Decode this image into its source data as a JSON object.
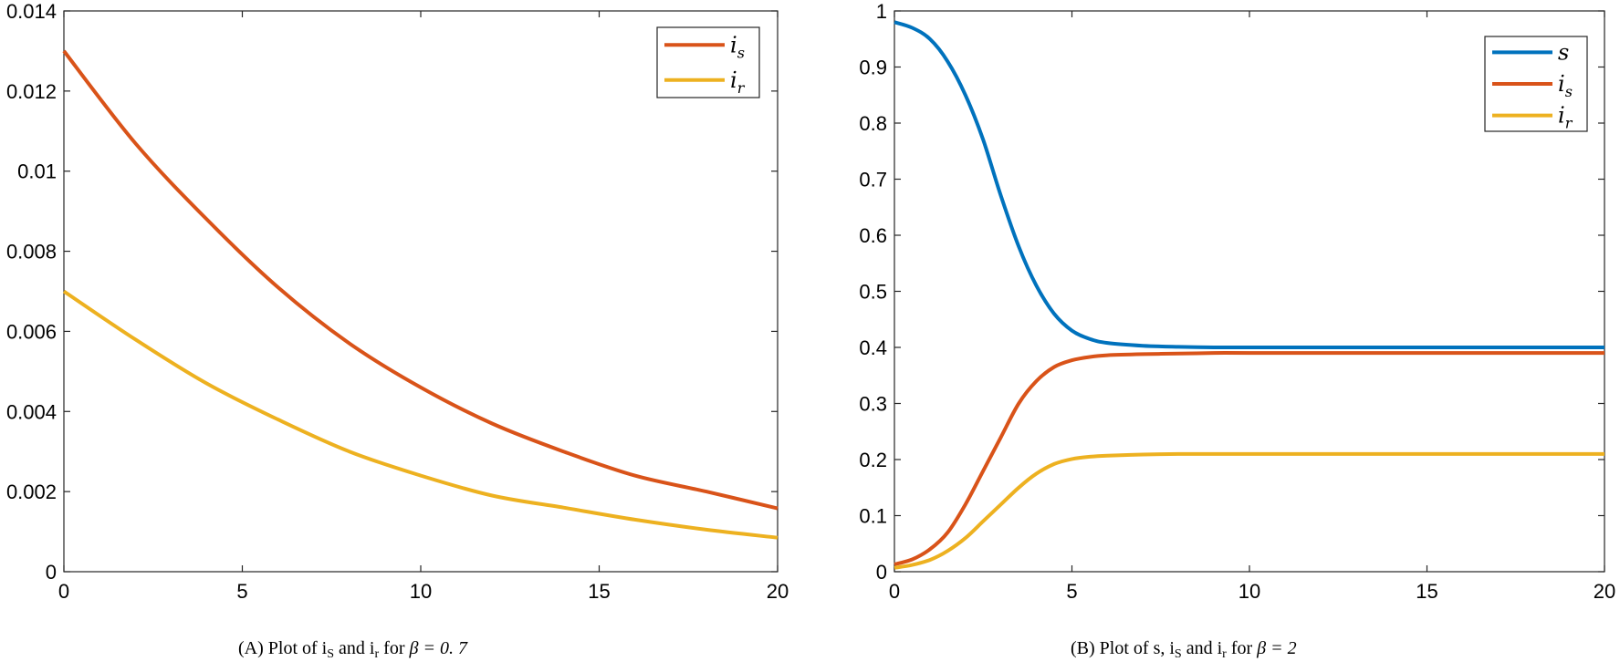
{
  "chart_data": [
    {
      "type": "line",
      "caption": {
        "prefix": "(A) Plot of",
        "v1": "i",
        "v1_sub": "S",
        "and": "and",
        "v2": "i",
        "v2_sub": "r",
        "for": "for",
        "beta_expr": "β = 0. 7"
      },
      "xlim": [
        0,
        20
      ],
      "ylim": [
        0,
        0.014
      ],
      "x_ticks": [
        "0",
        "5",
        "10",
        "15",
        "20"
      ],
      "y_ticks": [
        "0",
        "0.002",
        "0.004",
        "0.006",
        "0.008",
        "0.01",
        "0.012",
        "0.014"
      ],
      "legend_position": "top-right",
      "grid": false,
      "series": [
        {
          "name": "i",
          "sub": "s",
          "color": "#D95319",
          "x": [
            0,
            2,
            4,
            6,
            8,
            10,
            12,
            14,
            16,
            18,
            20
          ],
          "values": [
            0.013,
            0.0107,
            0.0088,
            0.0071,
            0.0057,
            0.0046,
            0.0037,
            0.003,
            0.0024,
            0.002,
            0.00158
          ]
        },
        {
          "name": "i",
          "sub": "r",
          "color": "#EDB120",
          "x": [
            0,
            2,
            4,
            6,
            8,
            10,
            12,
            14,
            16,
            18,
            20
          ],
          "values": [
            0.007,
            0.0058,
            0.0047,
            0.0038,
            0.003,
            0.0024,
            0.0019,
            0.0016,
            0.0013,
            0.00105,
            0.00085
          ]
        }
      ]
    },
    {
      "type": "line",
      "caption": {
        "prefix": "(B) Plot of",
        "v0": "s,",
        "v1": "i",
        "v1_sub": "S",
        "and": "and",
        "v2": "i",
        "v2_sub": "r",
        "for": "for",
        "beta_expr": "β = 2"
      },
      "xlim": [
        0,
        20
      ],
      "ylim": [
        0,
        1
      ],
      "x_ticks": [
        "0",
        "5",
        "10",
        "15",
        "20"
      ],
      "y_ticks": [
        "0",
        "0.1",
        "0.2",
        "0.3",
        "0.4",
        "0.5",
        "0.6",
        "0.7",
        "0.8",
        "0.9",
        "1"
      ],
      "legend_position": "top-right",
      "grid": false,
      "series": [
        {
          "name": "s",
          "sub": "",
          "color": "#0072BD",
          "x": [
            0,
            0.5,
            1,
            1.5,
            2,
            2.5,
            3,
            3.5,
            4,
            4.5,
            5,
            5.5,
            6,
            7,
            8,
            9,
            10,
            12,
            14,
            16,
            18,
            20
          ],
          "values": [
            0.98,
            0.97,
            0.95,
            0.91,
            0.85,
            0.77,
            0.67,
            0.58,
            0.51,
            0.46,
            0.43,
            0.415,
            0.408,
            0.403,
            0.401,
            0.4,
            0.4,
            0.4,
            0.4,
            0.4,
            0.4,
            0.4
          ]
        },
        {
          "name": "i",
          "sub": "s",
          "color": "#D95319",
          "x": [
            0,
            0.5,
            1,
            1.5,
            2,
            2.5,
            3,
            3.5,
            4,
            4.5,
            5,
            5.5,
            6,
            7,
            8,
            9,
            10,
            12,
            14,
            16,
            18,
            20
          ],
          "values": [
            0.013,
            0.022,
            0.04,
            0.07,
            0.12,
            0.18,
            0.24,
            0.3,
            0.34,
            0.365,
            0.377,
            0.383,
            0.386,
            0.388,
            0.389,
            0.39,
            0.39,
            0.39,
            0.39,
            0.39,
            0.39,
            0.39
          ]
        },
        {
          "name": "i",
          "sub": "r",
          "color": "#EDB120",
          "x": [
            0,
            0.5,
            1,
            1.5,
            2,
            2.5,
            3,
            3.5,
            4,
            4.5,
            5,
            5.5,
            6,
            7,
            8,
            9,
            10,
            12,
            14,
            16,
            18,
            20
          ],
          "values": [
            0.007,
            0.012,
            0.021,
            0.037,
            0.06,
            0.09,
            0.12,
            0.15,
            0.175,
            0.192,
            0.201,
            0.205,
            0.207,
            0.209,
            0.21,
            0.21,
            0.21,
            0.21,
            0.21,
            0.21,
            0.21,
            0.21
          ]
        }
      ]
    }
  ]
}
